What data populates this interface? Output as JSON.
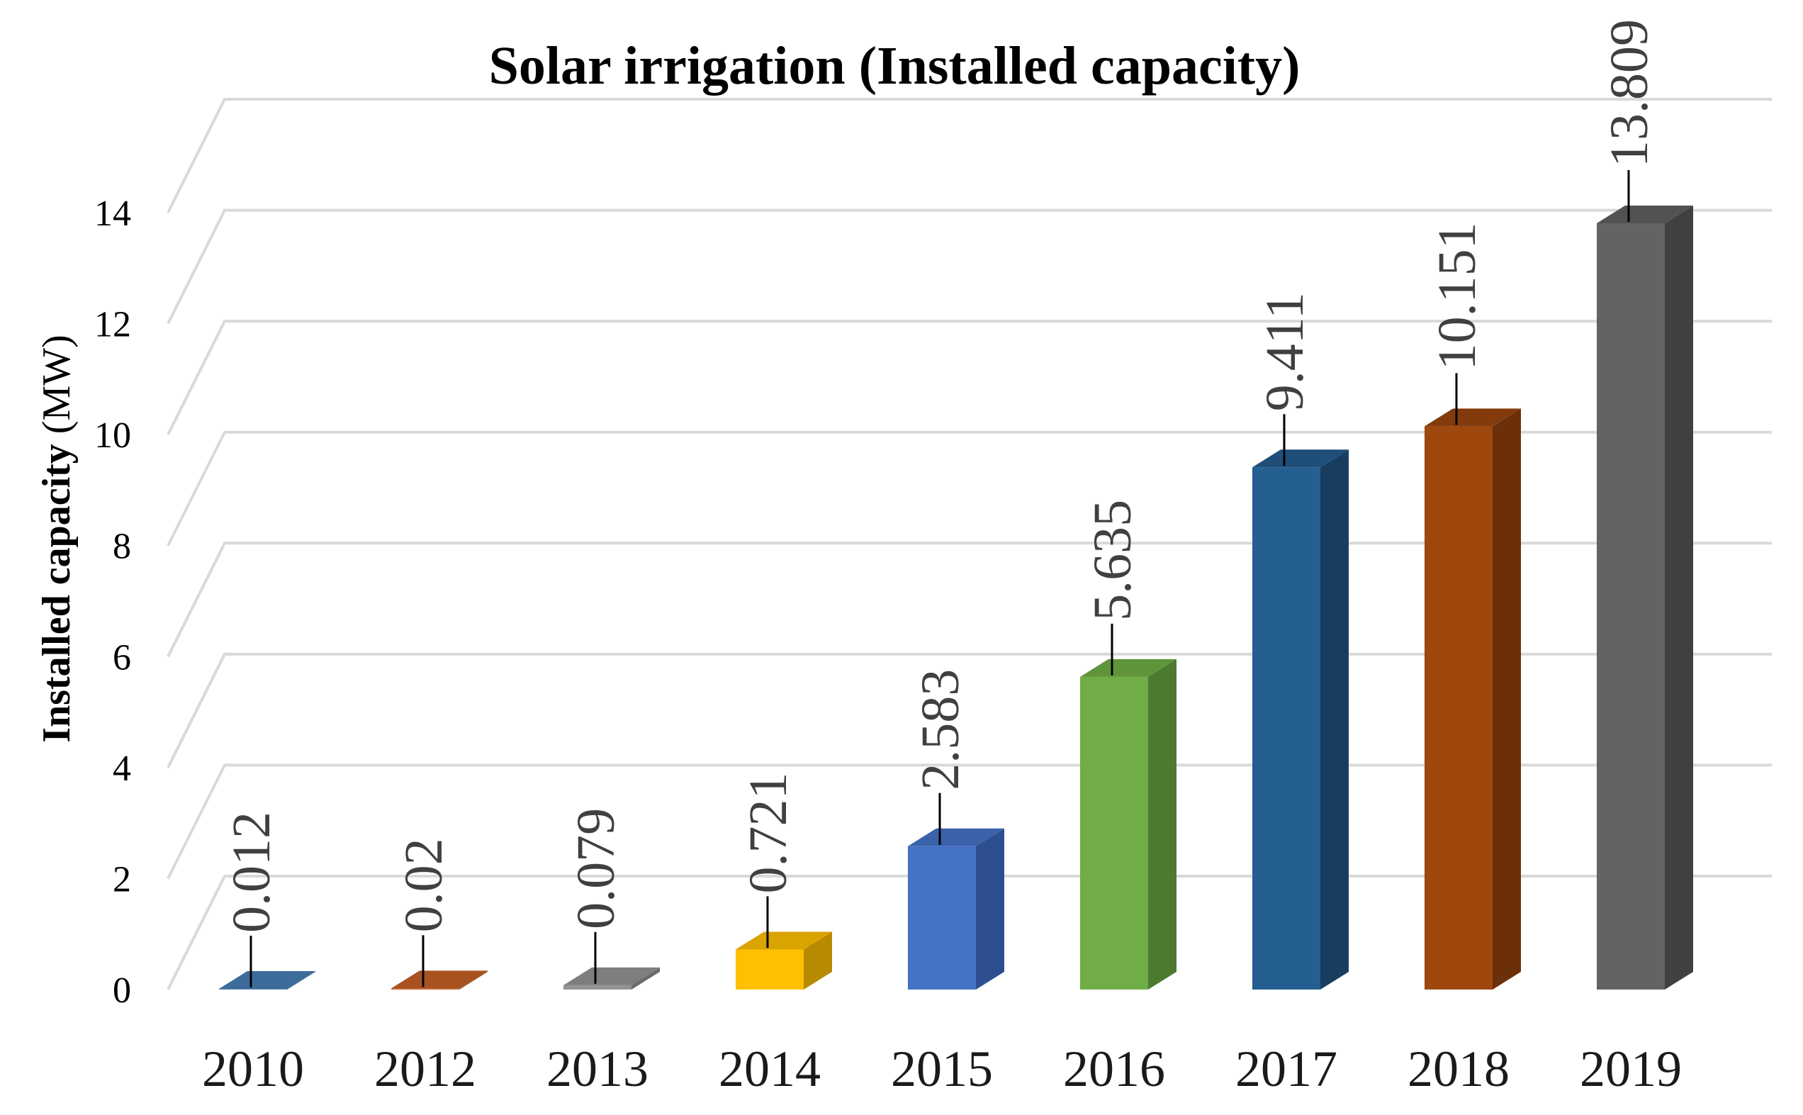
{
  "chart_data": {
    "type": "bar",
    "style": "3d-column",
    "title": "Solar irrigation (Installed capacity)",
    "ylabel": "Installed capacity",
    "ylabel_unit": "(MW)",
    "xlabel": "",
    "ylim": [
      0,
      14
    ],
    "yticks": [
      0,
      2,
      4,
      6,
      8,
      10,
      12,
      14
    ],
    "grid": true,
    "legend": "none",
    "categories": [
      "2010",
      "2012",
      "2013",
      "2014",
      "2015",
      "2016",
      "2017",
      "2018",
      "2019"
    ],
    "values": [
      0.012,
      0.02,
      0.079,
      0.721,
      2.583,
      5.635,
      9.411,
      10.151,
      13.809
    ],
    "data_labels": [
      "0.012",
      "0.02",
      "0.079",
      "0.721",
      "2.583",
      "5.635",
      "9.411",
      "10.151",
      "13.809"
    ],
    "colors": [
      "#4a7eb3",
      "#c5622a",
      "#939393",
      "#ffc000",
      "#4472c4",
      "#70ad47",
      "#255e91",
      "#9e480e",
      "#636363"
    ],
    "side_colors": [
      "#2f5a85",
      "#8f4519",
      "#6b6b6b",
      "#b88a00",
      "#2d4f8f",
      "#4c7a30",
      "#173d5f",
      "#6b300a",
      "#404040"
    ],
    "top_colors": [
      "#3d6c9b",
      "#a8521f",
      "#7e7e7e",
      "#d9a300",
      "#3a62ab",
      "#5f943b",
      "#1f4e78",
      "#833b0b",
      "#525252"
    ]
  }
}
